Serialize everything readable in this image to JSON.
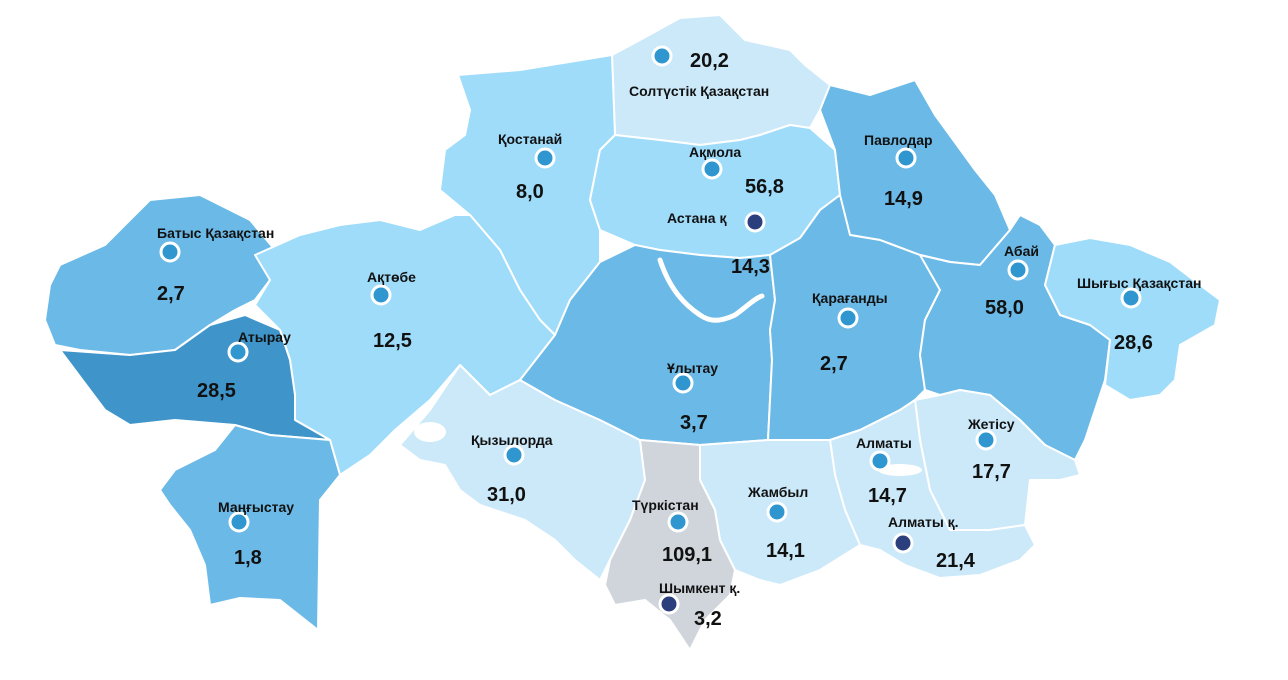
{
  "colors": {
    "very_light": "#cce9f9",
    "light": "#9edcfa",
    "medium": "#6bb9e6",
    "dark": "#3f95c9",
    "gray": "#d0d5db",
    "marker_region": "#2f96d0",
    "marker_city": "#2c3f7d"
  },
  "regions": [
    {
      "key": "soltustik",
      "name": "Солтүстік Қазақстан",
      "value": "20,2",
      "tone": "very_light"
    },
    {
      "key": "kostanai",
      "name": "Қостанай",
      "value": "8,0",
      "tone": "light"
    },
    {
      "key": "akmola",
      "name": "Ақмола",
      "value": "56,8",
      "tone": "light"
    },
    {
      "key": "pavlodar",
      "name": "Павлодар",
      "value": "14,9",
      "tone": "medium"
    },
    {
      "key": "batys",
      "name": "Батыс Қазақстан",
      "value": "2,7",
      "tone": "medium"
    },
    {
      "key": "aktobe",
      "name": "Ақтөбе",
      "value": "12,5",
      "tone": "light"
    },
    {
      "key": "atyrau",
      "name": "Атырау",
      "value": "28,5",
      "tone": "dark"
    },
    {
      "key": "mangystau",
      "name": "Маңғыстау",
      "value": "1,8",
      "tone": "medium"
    },
    {
      "key": "kyzylorda",
      "name": "Қызылорда",
      "value": "31,0",
      "tone": "very_light"
    },
    {
      "key": "ulytau",
      "name": "Ұлытау",
      "value": "3,7",
      "tone": "medium"
    },
    {
      "key": "karagandy",
      "name": "Қарағанды",
      "value": "2,7",
      "tone": "medium"
    },
    {
      "key": "abai",
      "name": "Абай",
      "value": "58,0",
      "tone": "medium"
    },
    {
      "key": "shygys",
      "name": "Шығыс Қазақстан",
      "value": "28,6",
      "tone": "light"
    },
    {
      "key": "zhetisu",
      "name": "Жетісу",
      "value": "17,7",
      "tone": "very_light"
    },
    {
      "key": "almaty",
      "name": "Алматы",
      "value": "14,7",
      "tone": "very_light"
    },
    {
      "key": "zhambyl",
      "name": "Жамбыл",
      "value": "14,1",
      "tone": "very_light"
    },
    {
      "key": "turkistan",
      "name": "Түркістан",
      "value": "109,1",
      "tone": "gray"
    }
  ],
  "cities": [
    {
      "key": "astana",
      "name": "Астана қ",
      "value": "14,3"
    },
    {
      "key": "almaty_c",
      "name": "Алматы қ.",
      "value": "21,4"
    },
    {
      "key": "shymkent",
      "name": "Шымкент қ.",
      "value": "3,2"
    }
  ]
}
